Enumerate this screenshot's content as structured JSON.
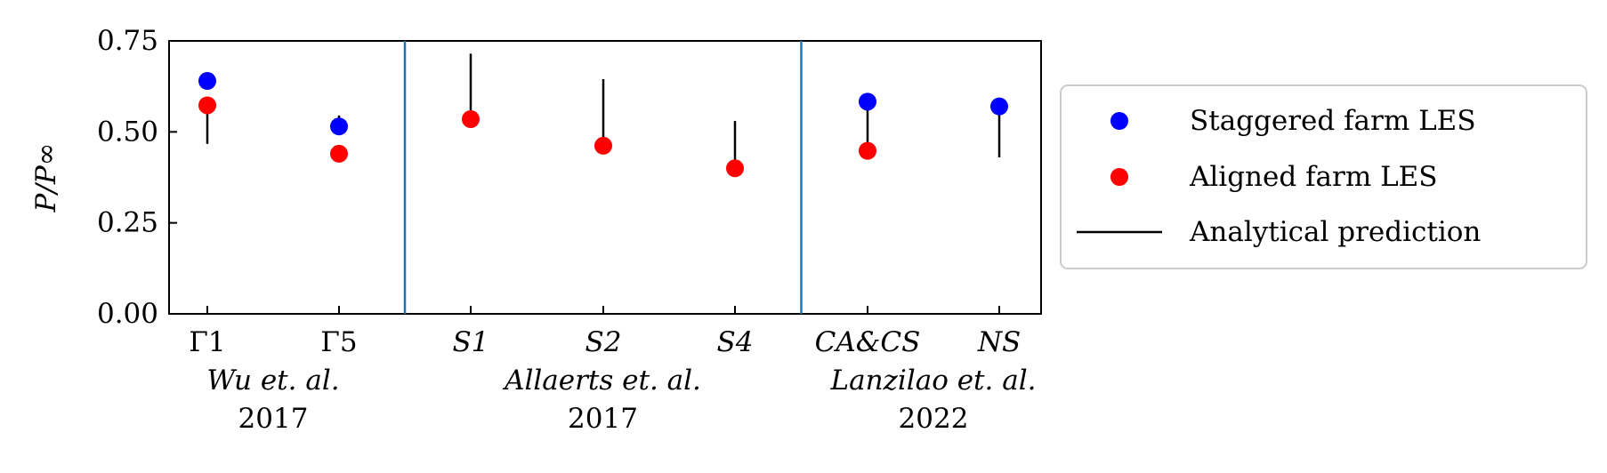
{
  "chart_data": {
    "type": "scatter",
    "ylabel": "P/P∞",
    "ylim": [
      0,
      0.75
    ],
    "yticks": [
      "0.00",
      "0.25",
      "0.50",
      "0.75"
    ],
    "categories": [
      "Γ1",
      "Γ5",
      "S1",
      "S2",
      "S4",
      "CA&CS",
      "NS"
    ],
    "series": [
      {
        "name": "Staggered farm LES",
        "color": "#0000ff",
        "values": [
          0.64,
          0.515,
          null,
          null,
          null,
          0.583,
          0.57
        ]
      },
      {
        "name": "Aligned farm LES",
        "color": "#ff0000",
        "values": [
          0.573,
          0.44,
          0.535,
          0.462,
          0.4,
          0.448,
          null
        ]
      },
      {
        "name": "Analytical prediction",
        "color": "#000000",
        "values": [
          0.467,
          0.545,
          0.715,
          0.645,
          0.53,
          0.563,
          0.43
        ]
      }
    ],
    "dividers_after": [
      1,
      4
    ],
    "divider_color": "#1f77b4",
    "groups": [
      {
        "authors": "Wu et. al.",
        "year": "2017"
      },
      {
        "authors": "Allaerts et. al.",
        "year": "2017"
      },
      {
        "authors": "Lanzilao et. al.",
        "year": "2022"
      }
    ],
    "legend_position": "outside-right"
  }
}
